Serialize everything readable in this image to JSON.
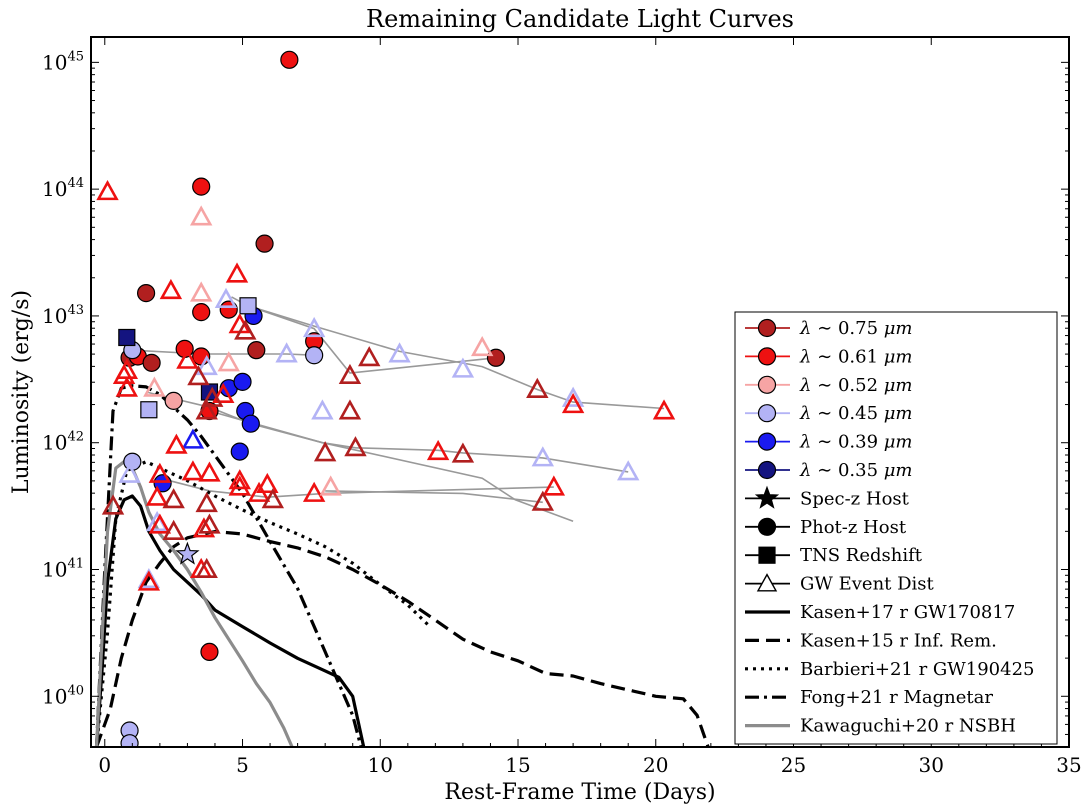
{
  "chart_data": {
    "type": "scatter",
    "title": "Remaining Candidate Light Curves",
    "xlabel": "Rest-Frame Time (Days)",
    "ylabel": "Luminosity (erg/s)",
    "xlim": [
      -0.5,
      35
    ],
    "ylim_log10": [
      39.6,
      45.2
    ],
    "log_y": true,
    "grid": false,
    "legend_position": "lower-right",
    "x_ticks": [
      {
        "value": 0,
        "label": "0"
      },
      {
        "value": 5,
        "label": "5"
      },
      {
        "value": 10,
        "label": "10"
      },
      {
        "value": 15,
        "label": "15"
      },
      {
        "value": 20,
        "label": "20"
      },
      {
        "value": 25,
        "label": "25"
      },
      {
        "value": 30,
        "label": "30"
      },
      {
        "value": 35,
        "label": "35"
      }
    ],
    "y_ticks": [
      {
        "value": 40,
        "base": "10",
        "exp": "40"
      },
      {
        "value": 41,
        "base": "10",
        "exp": "41"
      },
      {
        "value": 42,
        "base": "10",
        "exp": "42"
      },
      {
        "value": 43,
        "base": "10",
        "exp": "43"
      },
      {
        "value": 44,
        "base": "10",
        "exp": "44"
      },
      {
        "value": 45,
        "base": "10",
        "exp": "45"
      }
    ],
    "wavelengths": [
      {
        "key": "w075",
        "label_prefix": "λ ∼ ",
        "label_value": "0.75",
        "label_unit": " μm",
        "color": "#b11f1f"
      },
      {
        "key": "w061",
        "label_prefix": "λ ∼ ",
        "label_value": "0.61",
        "label_unit": " μm",
        "color": "#ee1111"
      },
      {
        "key": "w052",
        "label_prefix": "λ ∼ ",
        "label_value": "0.52",
        "label_unit": " μm",
        "color": "#f6a4a4"
      },
      {
        "key": "w045",
        "label_prefix": "λ ∼ ",
        "label_value": "0.45",
        "label_unit": " μm",
        "color": "#b3b3f5"
      },
      {
        "key": "w039",
        "label_prefix": "λ ∼ ",
        "label_value": "0.39",
        "label_unit": " μm",
        "color": "#1a1af0"
      },
      {
        "key": "w035",
        "label_prefix": "λ ∼ ",
        "label_value": "0.35",
        "label_unit": " μm",
        "color": "#141480"
      }
    ],
    "marker_types": [
      {
        "marker": "star",
        "label": "Spec-z Host"
      },
      {
        "marker": "circle",
        "label": "Phot-z Host"
      },
      {
        "marker": "square",
        "label": "TNS Redshift"
      },
      {
        "marker": "triangle",
        "label": "GW Event Dist"
      }
    ],
    "models": [
      {
        "label": "Kasen+17 r GW170817",
        "style": "solid",
        "color": "#000000",
        "x": [
          -0.3,
          -0.1,
          0.1,
          0.4,
          0.7,
          1.0,
          1.3,
          1.6,
          2.0,
          2.5,
          3.0,
          3.5,
          4.0,
          5.0,
          6.0,
          7.0,
          8.0,
          8.5,
          9.0,
          9.4
        ],
        "y": [
          39.6,
          40.2,
          40.9,
          41.4,
          41.55,
          41.58,
          41.5,
          41.3,
          41.15,
          41.0,
          40.9,
          40.8,
          40.68,
          40.55,
          40.42,
          40.3,
          40.2,
          40.15,
          40.0,
          39.6
        ]
      },
      {
        "label": "Kasen+15 r Inf. Rem.",
        "style": "dashed",
        "color": "#000000",
        "x": [
          -0.3,
          0.2,
          0.6,
          1.0,
          1.5,
          2.0,
          2.5,
          3.0,
          4.0,
          5.0,
          6.0,
          7.0,
          8.0,
          9.0,
          10.0,
          11.0,
          12.0,
          13.0,
          14.0,
          15.0,
          16.0,
          17.0,
          18.0,
          19.0,
          20.0,
          21.0,
          21.5,
          21.9
        ],
        "y": [
          39.6,
          39.9,
          40.3,
          40.6,
          40.9,
          41.05,
          41.18,
          41.25,
          41.3,
          41.28,
          41.22,
          41.17,
          41.1,
          41.0,
          40.88,
          40.75,
          40.6,
          40.45,
          40.35,
          40.28,
          40.18,
          40.16,
          40.1,
          40.05,
          40.0,
          39.98,
          39.85,
          39.6
        ]
      },
      {
        "label": "Barbieri+21 r GW190425",
        "style": "dotted",
        "color": "#000000",
        "x": [
          -0.3,
          0.1,
          0.4,
          0.8,
          1.5,
          2.0,
          3.0,
          4.0,
          5.0,
          6.0,
          7.0,
          8.0,
          9.0,
          10.0,
          11.0,
          11.8
        ],
        "y": [
          39.6,
          40.5,
          41.4,
          41.78,
          41.85,
          41.8,
          41.7,
          41.58,
          41.47,
          41.37,
          41.28,
          41.18,
          41.05,
          40.88,
          40.72,
          40.55
        ]
      },
      {
        "label": "Fong+21 r Magnetar",
        "style": "dashdot",
        "color": "#000000",
        "x": [
          -0.3,
          0.0,
          0.3,
          0.6,
          1.0,
          1.5,
          2.0,
          2.5,
          3.0,
          3.5,
          4.0,
          5.0,
          6.0,
          7.0,
          7.5,
          8.0,
          8.5,
          9.0,
          9.3
        ],
        "y": [
          39.6,
          41.0,
          42.25,
          42.43,
          42.45,
          42.44,
          42.38,
          42.28,
          42.18,
          42.05,
          41.9,
          41.6,
          41.22,
          40.85,
          40.6,
          40.35,
          40.1,
          39.85,
          39.6
        ]
      },
      {
        "label": "Kawaguchi+20 r NSBH",
        "style": "solid",
        "color": "#8c8c8c",
        "x": [
          -0.3,
          0.1,
          0.4,
          0.7,
          1.0,
          1.3,
          1.6,
          2.0,
          2.5,
          3.0,
          3.5,
          4.0,
          4.5,
          5.0,
          5.5,
          6.0,
          6.5,
          6.8
        ],
        "y": [
          39.6,
          41.3,
          41.8,
          41.85,
          41.8,
          41.65,
          41.45,
          41.28,
          41.15,
          41.0,
          40.82,
          40.62,
          40.45,
          40.28,
          40.1,
          39.95,
          39.75,
          39.6
        ]
      }
    ],
    "connectors": [
      {
        "x": [
          0.9,
          1.0,
          3.6,
          6.6,
          7.6
        ],
        "y": [
          42.72,
          42.73,
          42.7,
          42.7,
          42.69
        ]
      },
      {
        "x": [
          4.6,
          5.2,
          7.6,
          10.7,
          13.7,
          15.7,
          17.0,
          20.3
        ],
        "y": [
          43.15,
          43.08,
          42.92,
          42.72,
          42.6,
          42.42,
          42.32,
          42.27
        ]
      },
      {
        "x": [
          5.2,
          7.6,
          8.9,
          14.2
        ],
        "y": [
          43.08,
          42.9,
          42.55,
          42.67
        ]
      },
      {
        "x": [
          1.5,
          3.8,
          5.3,
          7.9,
          13.7,
          14.9,
          17.0
        ],
        "y": [
          42.4,
          42.28,
          42.15,
          42.0,
          41.72,
          41.55,
          41.38
        ]
      },
      {
        "x": [
          3.8,
          7.9,
          9.1,
          12.1,
          13.0,
          15.9,
          19.0
        ],
        "y": [
          42.25,
          42.0,
          41.96,
          41.94,
          41.92,
          41.88,
          41.77
        ]
      },
      {
        "x": [
          2.0,
          3.8,
          5.9,
          8.0,
          16.3
        ],
        "y": [
          41.72,
          41.62,
          41.57,
          41.6,
          41.65
        ]
      },
      {
        "x": [
          8.0,
          13.0,
          15.9
        ],
        "y": [
          41.62,
          41.6,
          41.53
        ]
      }
    ],
    "points": [
      {
        "x": 6.7,
        "y": 45.02,
        "marker": "circle",
        "band": "w061"
      },
      {
        "x": 3.5,
        "y": 44.02,
        "marker": "circle",
        "band": "w061"
      },
      {
        "x": 5.8,
        "y": 43.57,
        "marker": "circle",
        "band": "w075"
      },
      {
        "x": 1.5,
        "y": 43.18,
        "marker": "circle",
        "band": "w075"
      },
      {
        "x": 3.5,
        "y": 43.03,
        "marker": "circle",
        "band": "w061"
      },
      {
        "x": 4.5,
        "y": 43.05,
        "marker": "circle",
        "band": "w061"
      },
      {
        "x": 5.4,
        "y": 43.0,
        "marker": "circle",
        "band": "w039"
      },
      {
        "x": 7.6,
        "y": 42.8,
        "marker": "circle",
        "band": "w061"
      },
      {
        "x": 2.9,
        "y": 42.74,
        "marker": "circle",
        "band": "w061"
      },
      {
        "x": 0.9,
        "y": 42.67,
        "marker": "circle",
        "band": "w075"
      },
      {
        "x": 1.2,
        "y": 42.68,
        "marker": "circle",
        "band": "w061"
      },
      {
        "x": 1.0,
        "y": 42.73,
        "marker": "circle",
        "band": "w045"
      },
      {
        "x": 1.7,
        "y": 42.63,
        "marker": "circle",
        "band": "w075"
      },
      {
        "x": 3.5,
        "y": 42.68,
        "marker": "circle",
        "band": "w061"
      },
      {
        "x": 5.5,
        "y": 42.73,
        "marker": "circle",
        "band": "w075"
      },
      {
        "x": 7.6,
        "y": 42.69,
        "marker": "circle",
        "band": "w045"
      },
      {
        "x": 14.2,
        "y": 42.67,
        "marker": "circle",
        "band": "w075"
      },
      {
        "x": 2.5,
        "y": 42.33,
        "marker": "circle",
        "band": "w052"
      },
      {
        "x": 3.8,
        "y": 42.25,
        "marker": "circle",
        "band": "w061"
      },
      {
        "x": 4.5,
        "y": 42.43,
        "marker": "circle",
        "band": "w039"
      },
      {
        "x": 5.0,
        "y": 42.48,
        "marker": "circle",
        "band": "w039"
      },
      {
        "x": 5.1,
        "y": 42.25,
        "marker": "circle",
        "band": "w039"
      },
      {
        "x": 5.3,
        "y": 42.15,
        "marker": "circle",
        "band": "w039"
      },
      {
        "x": 4.9,
        "y": 41.93,
        "marker": "circle",
        "band": "w039"
      },
      {
        "x": 1.0,
        "y": 41.85,
        "marker": "circle",
        "band": "w045"
      },
      {
        "x": 2.1,
        "y": 41.68,
        "marker": "circle",
        "band": "w039"
      },
      {
        "x": 3.8,
        "y": 40.35,
        "marker": "circle",
        "band": "w061"
      },
      {
        "x": 0.9,
        "y": 39.73,
        "marker": "circle",
        "band": "w045"
      },
      {
        "x": 0.9,
        "y": 39.63,
        "marker": "circle",
        "band": "w045"
      },
      {
        "x": 0.8,
        "y": 42.83,
        "marker": "square",
        "band": "w035"
      },
      {
        "x": 5.2,
        "y": 43.08,
        "marker": "square",
        "band": "w045"
      },
      {
        "x": 3.8,
        "y": 42.4,
        "marker": "square",
        "band": "w035"
      },
      {
        "x": 1.6,
        "y": 42.26,
        "marker": "square",
        "band": "w045"
      },
      {
        "x": 3.0,
        "y": 41.12,
        "marker": "star",
        "band": "w045"
      },
      {
        "x": 0.1,
        "y": 43.98,
        "marker": "triangle",
        "band": "w061"
      },
      {
        "x": 3.5,
        "y": 43.78,
        "marker": "triangle",
        "band": "w052"
      },
      {
        "x": 4.8,
        "y": 43.33,
        "marker": "triangle",
        "band": "w061"
      },
      {
        "x": 2.4,
        "y": 43.2,
        "marker": "triangle",
        "band": "w061"
      },
      {
        "x": 3.5,
        "y": 43.18,
        "marker": "triangle",
        "band": "w052"
      },
      {
        "x": 4.4,
        "y": 43.13,
        "marker": "triangle",
        "band": "w045"
      },
      {
        "x": 4.9,
        "y": 42.93,
        "marker": "triangle",
        "band": "w061"
      },
      {
        "x": 5.1,
        "y": 42.88,
        "marker": "triangle",
        "band": "w075"
      },
      {
        "x": 7.6,
        "y": 42.9,
        "marker": "triangle",
        "band": "w045"
      },
      {
        "x": 10.7,
        "y": 42.7,
        "marker": "triangle",
        "band": "w045"
      },
      {
        "x": 13.7,
        "y": 42.75,
        "marker": "triangle",
        "band": "w052"
      },
      {
        "x": 9.6,
        "y": 42.67,
        "marker": "triangle",
        "band": "w075"
      },
      {
        "x": 6.6,
        "y": 42.7,
        "marker": "triangle",
        "band": "w045"
      },
      {
        "x": 3.0,
        "y": 42.65,
        "marker": "triangle",
        "band": "w061"
      },
      {
        "x": 4.5,
        "y": 42.63,
        "marker": "triangle",
        "band": "w052"
      },
      {
        "x": 0.8,
        "y": 42.57,
        "marker": "triangle",
        "band": "w061"
      },
      {
        "x": 0.7,
        "y": 42.53,
        "marker": "triangle",
        "band": "w061"
      },
      {
        "x": 3.7,
        "y": 42.6,
        "marker": "triangle",
        "band": "w045"
      },
      {
        "x": 3.4,
        "y": 42.52,
        "marker": "triangle",
        "band": "w075"
      },
      {
        "x": 8.9,
        "y": 42.53,
        "marker": "triangle",
        "band": "w075"
      },
      {
        "x": 13.0,
        "y": 42.58,
        "marker": "triangle",
        "band": "w045"
      },
      {
        "x": 15.7,
        "y": 42.42,
        "marker": "triangle",
        "band": "w075"
      },
      {
        "x": 17.0,
        "y": 42.35,
        "marker": "triangle",
        "band": "w045"
      },
      {
        "x": 17.0,
        "y": 42.3,
        "marker": "triangle",
        "band": "w061"
      },
      {
        "x": 20.3,
        "y": 42.25,
        "marker": "triangle",
        "band": "w061"
      },
      {
        "x": 0.8,
        "y": 42.43,
        "marker": "triangle",
        "band": "w061"
      },
      {
        "x": 1.8,
        "y": 42.43,
        "marker": "triangle",
        "band": "w052"
      },
      {
        "x": 4.3,
        "y": 42.38,
        "marker": "triangle",
        "band": "w061"
      },
      {
        "x": 3.9,
        "y": 42.35,
        "marker": "triangle",
        "band": "w075"
      },
      {
        "x": 7.9,
        "y": 42.25,
        "marker": "triangle",
        "band": "w045"
      },
      {
        "x": 8.9,
        "y": 42.25,
        "marker": "triangle",
        "band": "w075"
      },
      {
        "x": 3.7,
        "y": 42.25,
        "marker": "triangle",
        "band": "w075"
      },
      {
        "x": 3.2,
        "y": 42.02,
        "marker": "triangle",
        "band": "w039"
      },
      {
        "x": 2.6,
        "y": 41.98,
        "marker": "triangle",
        "band": "w061"
      },
      {
        "x": 8.0,
        "y": 41.92,
        "marker": "triangle",
        "band": "w075"
      },
      {
        "x": 9.1,
        "y": 41.96,
        "marker": "triangle",
        "band": "w075"
      },
      {
        "x": 12.1,
        "y": 41.93,
        "marker": "triangle",
        "band": "w061"
      },
      {
        "x": 13.0,
        "y": 41.91,
        "marker": "triangle",
        "band": "w075"
      },
      {
        "x": 15.9,
        "y": 41.88,
        "marker": "triangle",
        "band": "w045"
      },
      {
        "x": 19.0,
        "y": 41.77,
        "marker": "triangle",
        "band": "w045"
      },
      {
        "x": 0.9,
        "y": 41.75,
        "marker": "triangle",
        "band": "w045"
      },
      {
        "x": 2.0,
        "y": 41.75,
        "marker": "triangle",
        "band": "w061"
      },
      {
        "x": 3.2,
        "y": 41.77,
        "marker": "triangle",
        "band": "w061"
      },
      {
        "x": 3.8,
        "y": 41.76,
        "marker": "triangle",
        "band": "w061"
      },
      {
        "x": 4.9,
        "y": 41.7,
        "marker": "triangle",
        "band": "w061"
      },
      {
        "x": 4.9,
        "y": 41.65,
        "marker": "triangle",
        "band": "w061"
      },
      {
        "x": 5.9,
        "y": 41.67,
        "marker": "triangle",
        "band": "w061"
      },
      {
        "x": 5.6,
        "y": 41.6,
        "marker": "triangle",
        "band": "w061"
      },
      {
        "x": 6.1,
        "y": 41.55,
        "marker": "triangle",
        "band": "w075"
      },
      {
        "x": 7.6,
        "y": 41.6,
        "marker": "triangle",
        "band": "w061"
      },
      {
        "x": 8.2,
        "y": 41.65,
        "marker": "triangle",
        "band": "w052"
      },
      {
        "x": 16.3,
        "y": 41.65,
        "marker": "triangle",
        "band": "w061"
      },
      {
        "x": 0.3,
        "y": 41.5,
        "marker": "triangle",
        "band": "w075"
      },
      {
        "x": 1.9,
        "y": 41.57,
        "marker": "triangle",
        "band": "w061"
      },
      {
        "x": 2.5,
        "y": 41.55,
        "marker": "triangle",
        "band": "w075"
      },
      {
        "x": 3.7,
        "y": 41.52,
        "marker": "triangle",
        "band": "w075"
      },
      {
        "x": 15.9,
        "y": 41.53,
        "marker": "triangle",
        "band": "w075"
      },
      {
        "x": 1.9,
        "y": 41.37,
        "marker": "triangle",
        "band": "w045"
      },
      {
        "x": 2.0,
        "y": 41.35,
        "marker": "triangle",
        "band": "w061"
      },
      {
        "x": 2.5,
        "y": 41.3,
        "marker": "triangle",
        "band": "w075"
      },
      {
        "x": 3.6,
        "y": 41.32,
        "marker": "triangle",
        "band": "w061"
      },
      {
        "x": 3.8,
        "y": 41.35,
        "marker": "triangle",
        "band": "w075"
      },
      {
        "x": 3.5,
        "y": 41.0,
        "marker": "triangle",
        "band": "w061"
      },
      {
        "x": 3.7,
        "y": 41.0,
        "marker": "triangle",
        "band": "w075"
      },
      {
        "x": 1.6,
        "y": 40.92,
        "marker": "triangle",
        "band": "w045"
      },
      {
        "x": 1.6,
        "y": 40.9,
        "marker": "triangle",
        "band": "w061"
      }
    ]
  }
}
